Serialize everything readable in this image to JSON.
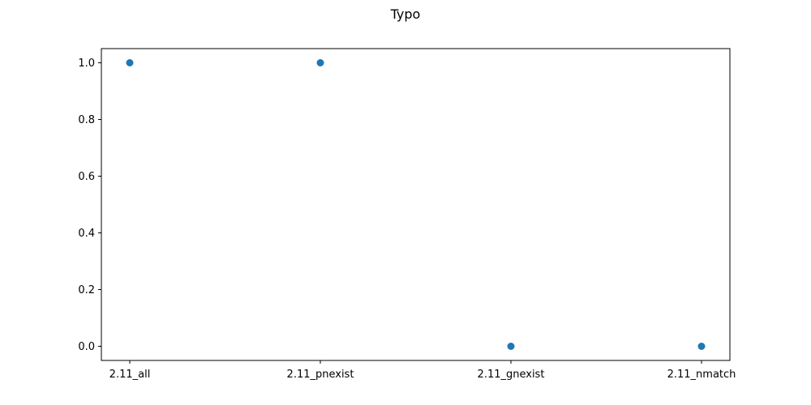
{
  "chart_data": {
    "type": "scatter",
    "title": "Typo",
    "xlabel": "",
    "ylabel": "",
    "categories": [
      "2.11_all",
      "2.11_pnexist",
      "2.11_gnexist",
      "2.11_nmatch"
    ],
    "values": [
      1.0,
      1.0,
      0.0,
      0.0
    ],
    "ylim": [
      -0.05,
      1.05
    ],
    "yticks": [
      "0.0",
      "0.2",
      "0.4",
      "0.6",
      "0.8",
      "1.0"
    ],
    "grid": false,
    "marker_color": "#1f77b4"
  }
}
